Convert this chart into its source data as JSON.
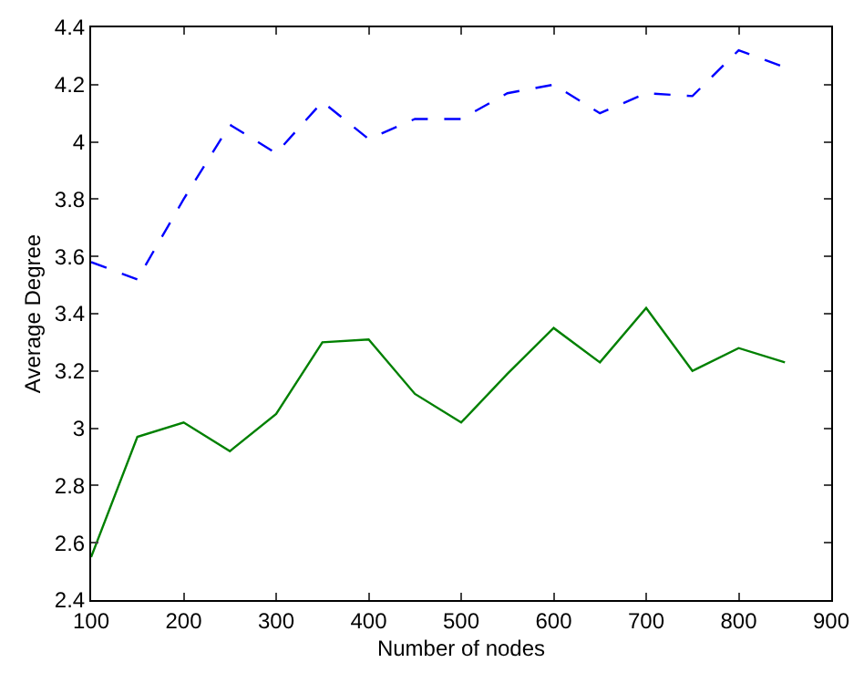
{
  "chart_data": {
    "type": "line",
    "xlabel": "Number of nodes",
    "ylabel": "Average Degree",
    "x": [
      100,
      150,
      200,
      250,
      300,
      350,
      400,
      450,
      500,
      550,
      600,
      650,
      700,
      750,
      800,
      850
    ],
    "series": [
      {
        "color": "#0000ff",
        "line_style": "dashed",
        "values": [
          3.58,
          3.52,
          3.8,
          4.06,
          3.96,
          4.14,
          4.01,
          4.08,
          4.08,
          4.17,
          4.2,
          4.1,
          4.17,
          4.16,
          4.32,
          4.26
        ]
      },
      {
        "color": "#008000",
        "line_style": "solid",
        "values": [
          2.55,
          2.97,
          3.02,
          2.92,
          3.05,
          3.3,
          3.31,
          3.12,
          3.02,
          3.19,
          3.35,
          3.23,
          3.42,
          3.2,
          3.28,
          3.23
        ]
      }
    ],
    "xlim": [
      100,
      900
    ],
    "xticks": [
      100,
      200,
      300,
      400,
      500,
      600,
      700,
      800,
      900
    ],
    "ylim": [
      2.4,
      4.4
    ],
    "yticks": [
      2.4,
      2.6,
      2.8,
      3,
      3.2,
      3.4,
      3.6,
      3.8,
      4,
      4.2,
      4.4
    ],
    "grid": false,
    "legend": false,
    "marker": "none"
  }
}
